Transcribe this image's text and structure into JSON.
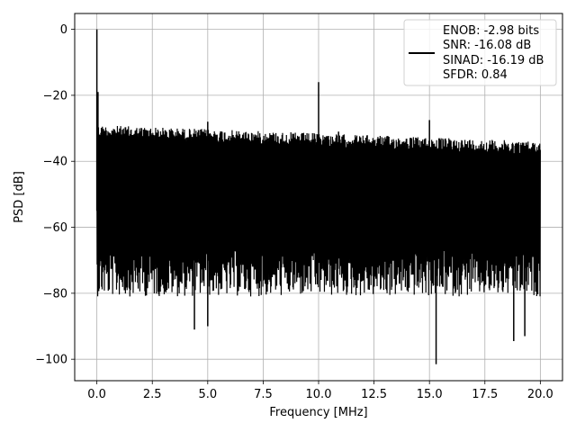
{
  "chart_data": {
    "type": "line",
    "xlabel": "Frequency [MHz]",
    "ylabel": "PSD [dB]",
    "xlim": [
      -1.0,
      21.0
    ],
    "ylim": [
      -106.5,
      4.8
    ],
    "grid": true,
    "x_ticks": [
      0.0,
      2.5,
      5.0,
      7.5,
      10.0,
      12.5,
      15.0,
      17.5,
      20.0
    ],
    "x_tick_labels": [
      "0.0",
      "2.5",
      "5.0",
      "7.5",
      "10.0",
      "12.5",
      "15.0",
      "17.5",
      "20.0"
    ],
    "y_ticks": [
      0,
      -20,
      -40,
      -60,
      -80,
      -100
    ],
    "y_tick_labels": [
      "0",
      "−20",
      "−40",
      "−60",
      "−80",
      "−100"
    ],
    "legend": {
      "placement": "upper-right",
      "entries": [
        "ENOB: -2.98 bits",
        "SNR: -16.08 dB",
        "SINAD: -16.19 dB",
        "SFDR: 0.84"
      ]
    },
    "series": [
      {
        "color": "#000000",
        "description_points": {
          "x_range": [
            0.0,
            20.0
          ],
          "noise_floor_top_start": -29,
          "noise_floor_top_end": -34,
          "noise_floor_bottom_typical": -75
        },
        "peaks": [
          {
            "x": 0.0,
            "y": 0.0
          },
          {
            "x": 0.05,
            "y": -19.0
          },
          {
            "x": 10.0,
            "y": -16.0
          },
          {
            "x": 5.0,
            "y": -28.0
          },
          {
            "x": 15.0,
            "y": -27.5
          },
          {
            "x": 10.9,
            "y": -31.0
          }
        ],
        "dips": [
          {
            "x": 4.4,
            "y": -91.0
          },
          {
            "x": 5.0,
            "y": -90.0
          },
          {
            "x": 15.3,
            "y": -101.5
          },
          {
            "x": 18.8,
            "y": -94.5
          },
          {
            "x": 19.3,
            "y": -93.0
          }
        ]
      }
    ]
  }
}
